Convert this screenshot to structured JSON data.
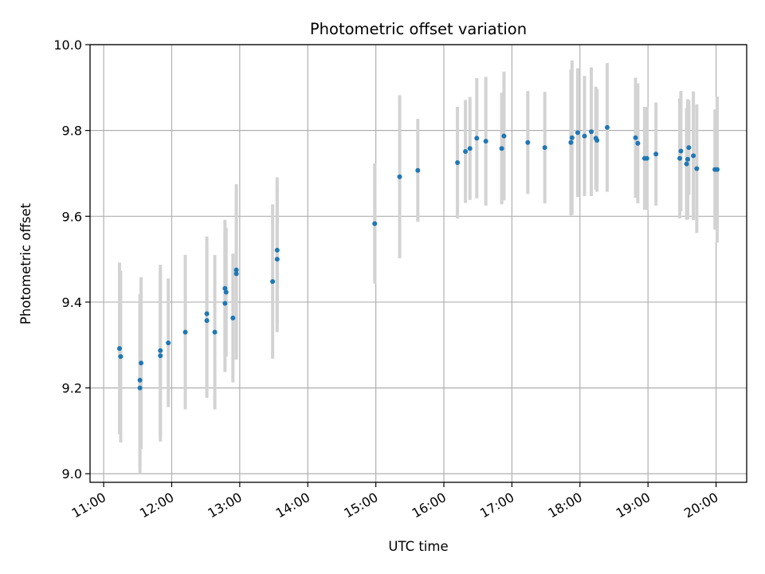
{
  "chart_data": {
    "type": "scatter",
    "title": "Photometric offset variation",
    "xlabel": "UTC time",
    "ylabel": "Photometric offset",
    "x_ticks": [
      "11:00",
      "12:00",
      "13:00",
      "14:00",
      "15:00",
      "16:00",
      "17:00",
      "18:00",
      "19:00",
      "20:00"
    ],
    "y_ticks": [
      "9.0",
      "9.2",
      "9.4",
      "9.6",
      "9.8",
      "10.0"
    ],
    "xlim": [
      "10:48",
      "20:27"
    ],
    "ylim": [
      8.98,
      10.0
    ],
    "grid": true,
    "legend": "none",
    "colors": {
      "points": "#1f77b4",
      "errorbars": "#d3d3d3",
      "grid": "#b0b0b0"
    },
    "series": [
      {
        "x": [
          "11:14",
          "11:15",
          "11:32",
          "11:32",
          "11:33",
          "11:50",
          "11:50",
          "11:57",
          "12:12",
          "12:31",
          "12:31",
          "12:38",
          "12:47",
          "12:47",
          "12:48",
          "12:54",
          "12:57",
          "12:57",
          "13:29",
          "13:33",
          "13:33",
          "14:59",
          "15:21",
          "15:37",
          "16:12",
          "16:19",
          "16:23",
          "16:29",
          "16:37",
          "16:51",
          "16:53",
          "17:14",
          "17:29",
          "17:52",
          "17:53",
          "17:58",
          "18:04",
          "18:10",
          "18:14",
          "18:15",
          "18:24",
          "18:49",
          "18:51",
          "18:57",
          "18:59",
          "19:07",
          "19:28",
          "19:29",
          "19:34",
          "19:35",
          "19:36",
          "19:40",
          "19:43",
          "19:59",
          "20:01"
        ],
        "y": [
          9.292,
          9.273,
          9.218,
          9.2,
          9.258,
          9.287,
          9.275,
          9.305,
          9.33,
          9.373,
          9.357,
          9.33,
          9.397,
          9.432,
          9.423,
          9.363,
          9.466,
          9.475,
          9.448,
          9.5,
          9.521,
          9.583,
          9.692,
          9.707,
          9.725,
          9.751,
          9.758,
          9.782,
          9.775,
          9.758,
          9.787,
          9.772,
          9.76,
          9.772,
          9.783,
          9.795,
          9.787,
          9.797,
          9.782,
          9.777,
          9.807,
          9.783,
          9.77,
          9.735,
          9.735,
          9.745,
          9.735,
          9.752,
          9.722,
          9.733,
          9.76,
          9.741,
          9.711,
          9.709,
          9.709
        ],
        "yerr": [
          0.2,
          0.2,
          0.2,
          0.2,
          0.2,
          0.2,
          0.2,
          0.15,
          0.18,
          0.18,
          0.18,
          0.18,
          0.16,
          0.16,
          0.15,
          0.15,
          0.2,
          0.2,
          0.18,
          0.17,
          0.17,
          0.14,
          0.19,
          0.12,
          0.13,
          0.12,
          0.12,
          0.14,
          0.15,
          0.13,
          0.15,
          0.12,
          0.13,
          0.17,
          0.18,
          0.15,
          0.14,
          0.15,
          0.12,
          0.12,
          0.15,
          0.14,
          0.14,
          0.12,
          0.12,
          0.12,
          0.14,
          0.14,
          0.13,
          0.14,
          0.11,
          0.15,
          0.15,
          0.14,
          0.17
        ]
      }
    ]
  }
}
